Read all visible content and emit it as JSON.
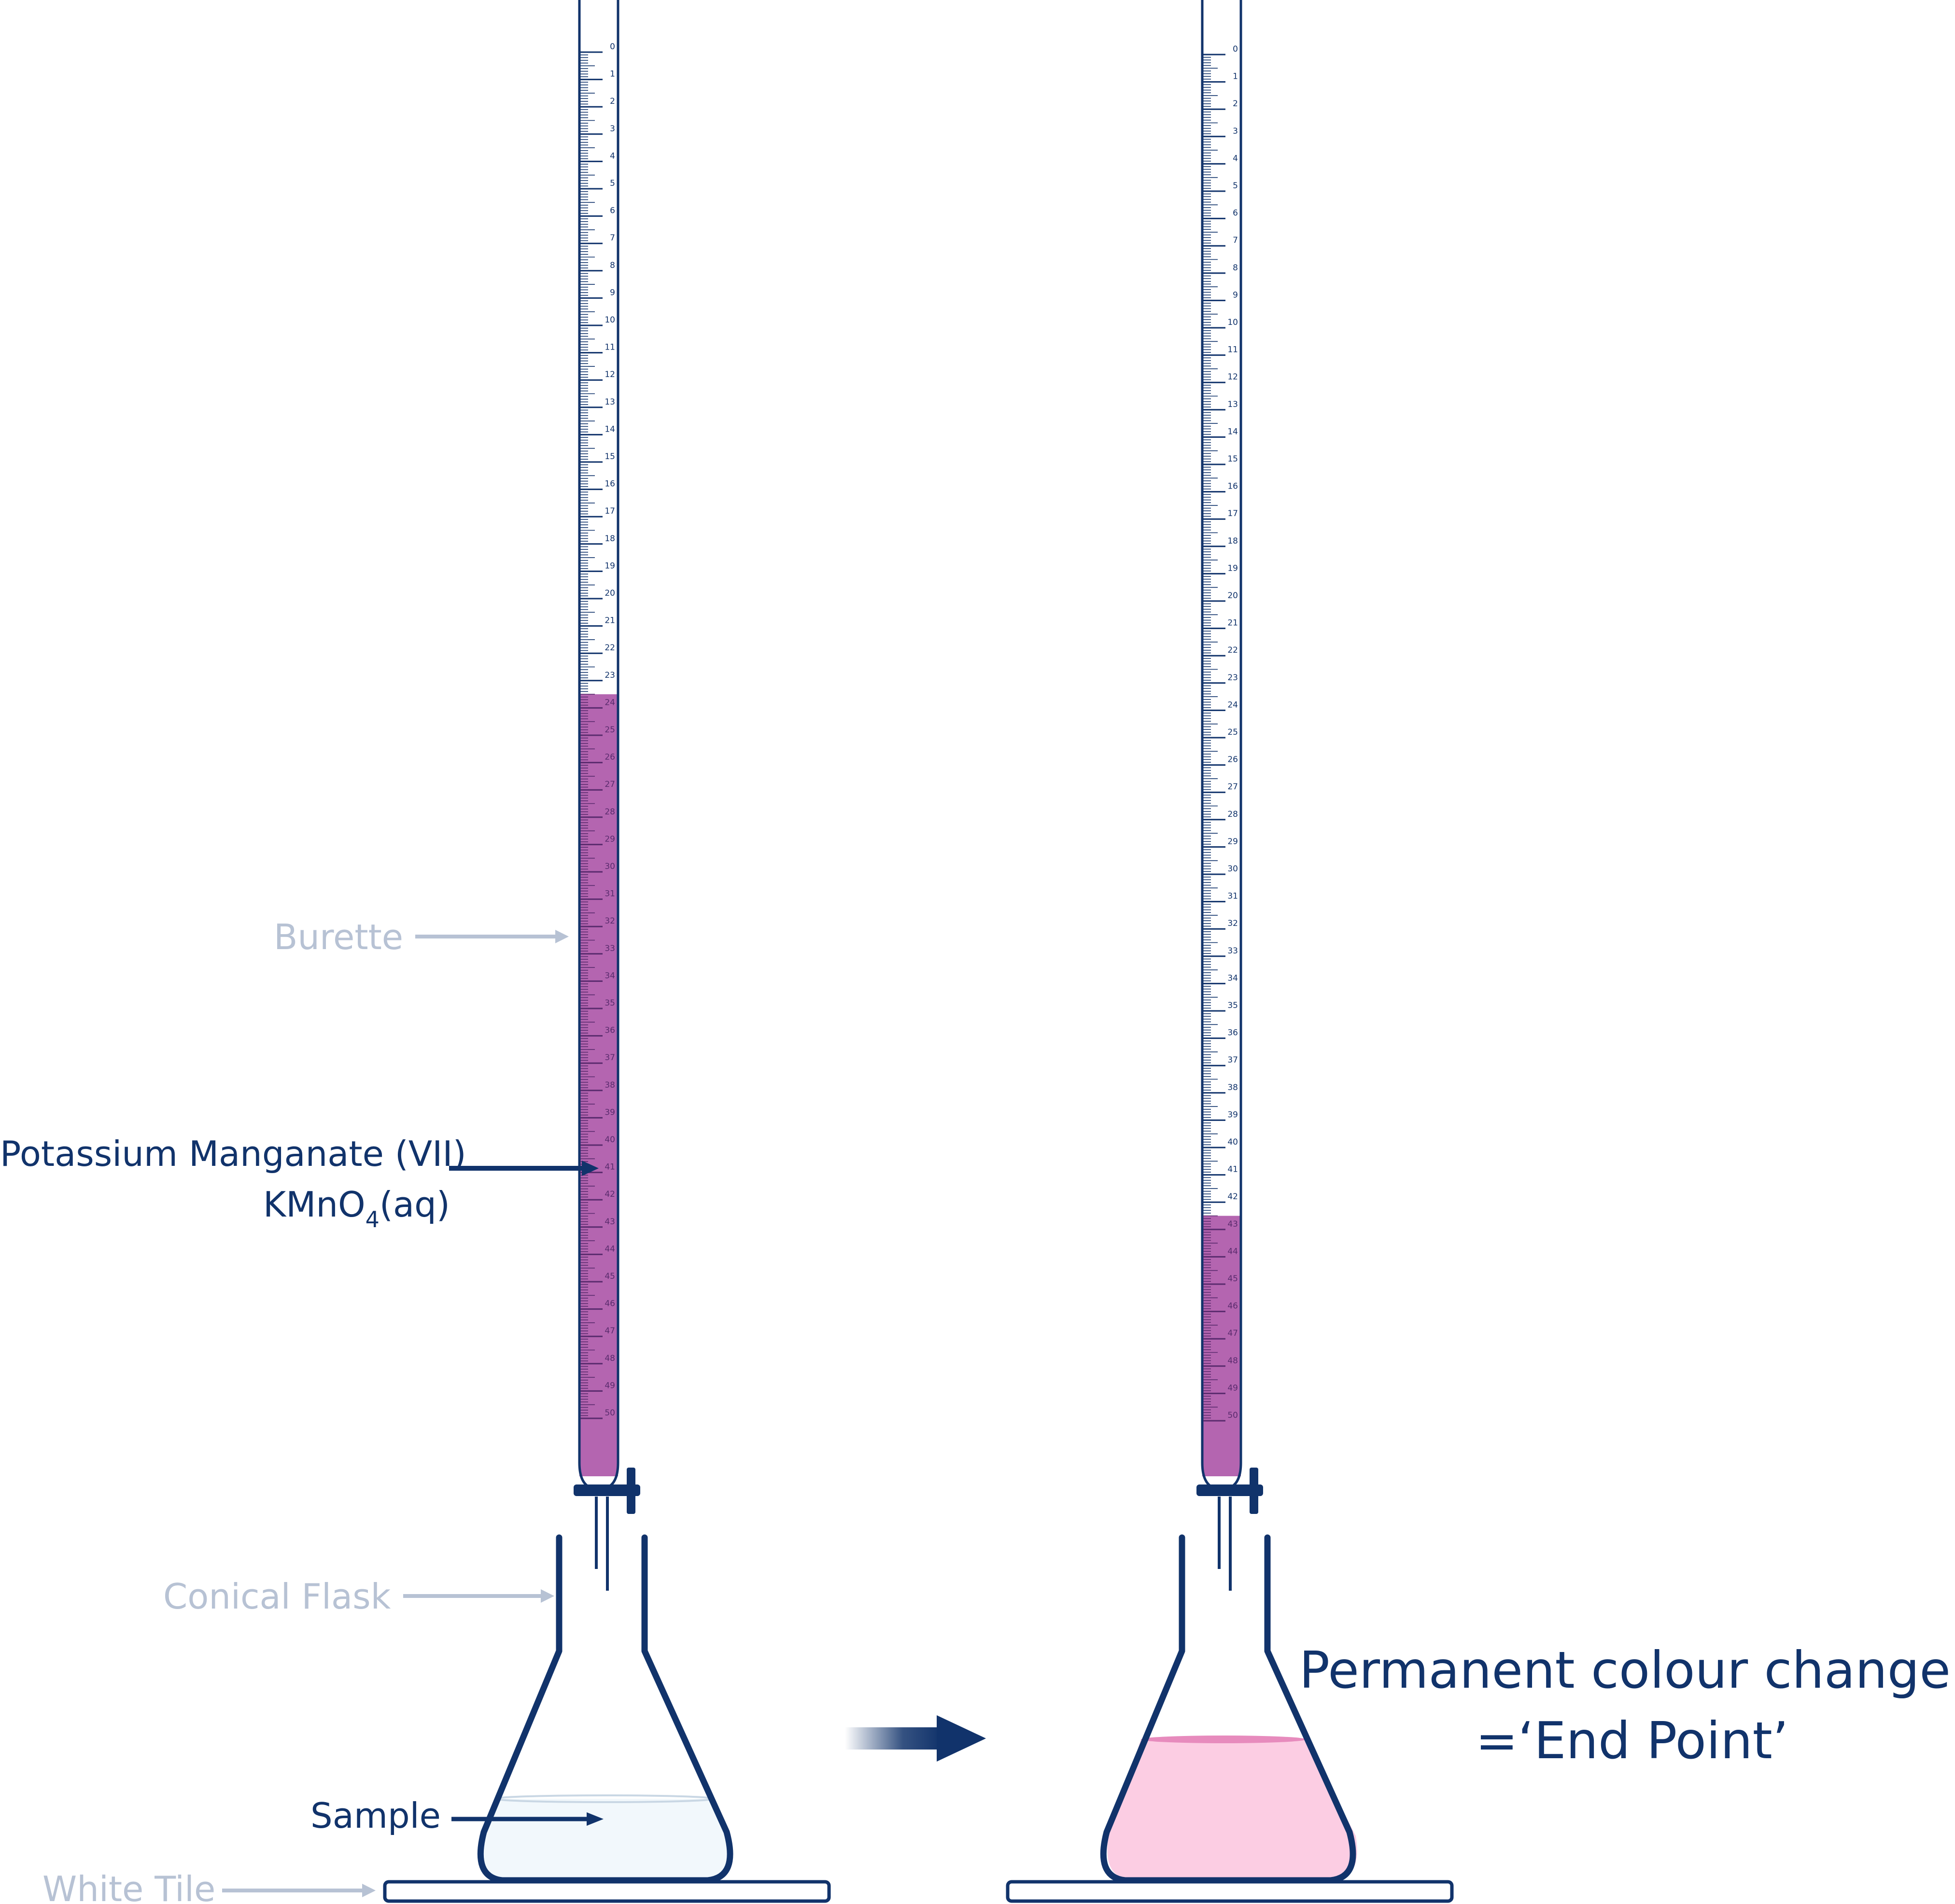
{
  "labels": {
    "burette": "Burette",
    "reagent_name": "Potassium Manganate (VII)",
    "reagent_formula_main": "KMnO",
    "reagent_formula_sub": "4",
    "reagent_formula_state": "(aq)",
    "conical_flask": "Conical Flask",
    "sample": "Sample",
    "white_tile": "White Tile",
    "result_line1": "Permanent colour change",
    "result_line2": "=‘End Point’"
  },
  "burette_scale": {
    "min": 0,
    "max": 50,
    "unit_step": 1,
    "minor_divisions": 10
  },
  "before": {
    "liquid_top_reading": 23.5,
    "flask_contents": "colourless sample"
  },
  "after": {
    "liquid_top_reading": 42.5,
    "flask_contents": "pale pink"
  },
  "colors": {
    "outline": "#11336b",
    "grey_label": "#b7c2d4",
    "grey_arrow": "#b7c2d4",
    "permanganate": "#b465b0",
    "permanganate_tick": "#5a2b6e",
    "sample_fill": "#f2f8fc",
    "endpoint_fill": "#fccde3",
    "endpoint_surface": "#e78bbd"
  }
}
